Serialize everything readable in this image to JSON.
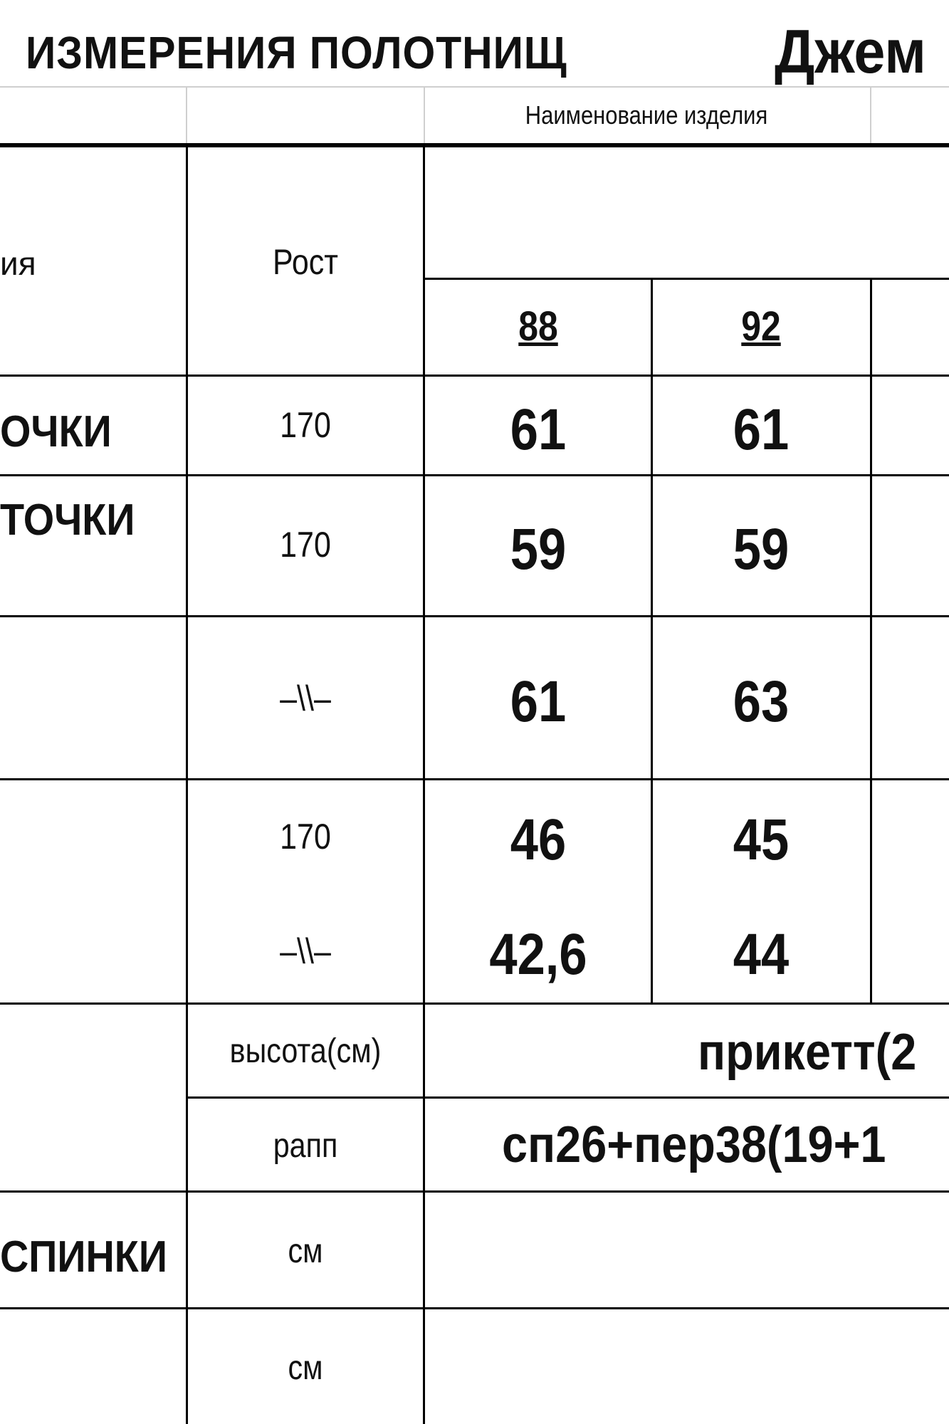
{
  "title": {
    "main": "ИЗМЕРЕНИЯ  ПОЛОТНИЩ",
    "product": "Джем"
  },
  "header": {
    "product_name_label": "Наименование изделия",
    "name_col_fragment": "ия",
    "height_col": "Рост",
    "sizes": [
      "88",
      "92"
    ]
  },
  "rows": [
    {
      "label": "ОЧКИ",
      "height": "170",
      "values": [
        "61",
        "61"
      ]
    },
    {
      "label": "ТОЧКИ",
      "height": "170",
      "values": [
        "59",
        "59"
      ]
    },
    {
      "label": "",
      "height": "–\\\\–",
      "values": [
        "61",
        "63"
      ]
    },
    {
      "label": "",
      "height": "170",
      "values": [
        "46",
        "45"
      ]
    },
    {
      "label": "",
      "height": "–\\\\–",
      "values": [
        "42,6",
        "44"
      ]
    }
  ],
  "pattern": {
    "height_label": "высота(см)",
    "height_value": "прикетт(2",
    "repeat_label": "рапп",
    "repeat_value": "сп26+пер38(19+1"
  },
  "bottom_rows": [
    {
      "label": "СПИНКИ",
      "unit": "см"
    },
    {
      "label": "",
      "unit": "см"
    }
  ]
}
